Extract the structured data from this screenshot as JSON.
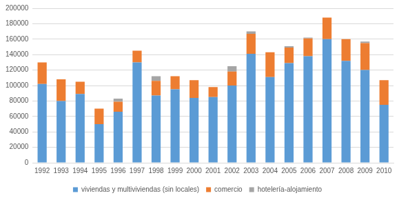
{
  "chart_data": {
    "type": "bar",
    "stacked": true,
    "categories": [
      "1992",
      "1993",
      "1994",
      "1995",
      "1996",
      "1997",
      "1998",
      "1999",
      "2000",
      "2001",
      "2002",
      "2003",
      "2004",
      "2005",
      "2006",
      "2007",
      "2008",
      "2009",
      "2010"
    ],
    "series": [
      {
        "name": "viviendas y multiviviendas (sin locales)",
        "color": "#5b9bd5",
        "values": [
          102000,
          80000,
          89000,
          50000,
          66000,
          130000,
          87000,
          95000,
          84000,
          85000,
          100000,
          141000,
          111000,
          129000,
          138000,
          160000,
          132000,
          120000,
          75000
        ]
      },
      {
        "name": "comercio",
        "color": "#ed7d31",
        "values": [
          28000,
          28000,
          16000,
          20000,
          13000,
          15000,
          19000,
          17000,
          23000,
          13000,
          18000,
          26000,
          32000,
          20000,
          23000,
          28000,
          28000,
          35000,
          32000
        ]
      },
      {
        "name": "hotelería-alojamiento",
        "color": "#a5a5a5",
        "values": [
          0,
          0,
          0,
          0,
          4000,
          0,
          6000,
          0,
          0,
          0,
          7000,
          3000,
          0,
          2000,
          1000,
          0,
          0,
          2000,
          0
        ]
      }
    ],
    "ylim": [
      0,
      200000
    ],
    "yticks": [
      0,
      20000,
      40000,
      60000,
      80000,
      100000,
      120000,
      140000,
      160000,
      180000,
      200000
    ],
    "grid": true,
    "legend": "bottom"
  }
}
